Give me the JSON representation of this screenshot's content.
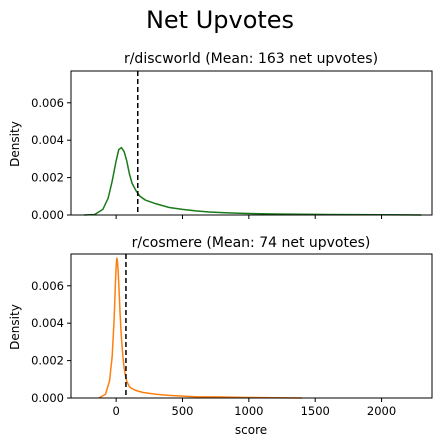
{
  "chart_data": {
    "type": "line",
    "title": "Net Upvotes",
    "panels": [
      {
        "title": "r/discworld (Mean: 163 net upvotes)",
        "ylabel": "Density",
        "xlabel": "",
        "xlim": [
          -340,
          2380
        ],
        "ylim": [
          0,
          0.0077
        ],
        "yticks": [
          "0.000",
          "0.002",
          "0.004",
          "0.006"
        ],
        "mean": 163,
        "color": "#1a7a1a",
        "series": [
          {
            "x": [
              -240,
              -160,
              -100,
              -60,
              -30,
              0,
              20,
              40,
              60,
              80,
              100,
              120,
              150,
              180,
              220,
              260,
              300,
              350,
              400,
              500,
              600,
              700,
              800,
              900,
              1000,
              1200,
              1400,
              1600,
              1800,
              2000,
              2200,
              2300
            ],
            "y": [
              0.0,
              3e-05,
              0.0003,
              0.0009,
              0.0018,
              0.0029,
              0.0035,
              0.0036,
              0.0034,
              0.0029,
              0.0022,
              0.0017,
              0.0013,
              0.001,
              0.0008,
              0.0007,
              0.0006,
              0.0005,
              0.0004,
              0.0003,
              0.00022,
              0.00016,
              0.00013,
              0.0001,
              8e-05,
              5e-05,
              4e-05,
              3e-05,
              2e-05,
              1e-05,
              5e-06,
              0.0
            ]
          }
        ]
      },
      {
        "title": "r/cosmere (Mean: 74 net upvotes)",
        "ylabel": "Density",
        "xlabel": "score",
        "xlim": [
          -340,
          2380
        ],
        "ylim": [
          0,
          0.0077
        ],
        "xticks": [
          "0",
          "500",
          "1000",
          "1500",
          "2000"
        ],
        "yticks": [
          "0.000",
          "0.002",
          "0.004",
          "0.006"
        ],
        "mean": 74,
        "color": "#ff7f0e",
        "series": [
          {
            "x": [
              -130,
              -80,
              -50,
              -30,
              -15,
              -5,
              0,
              5,
              10,
              15,
              20,
              30,
              40,
              50,
              60,
              70,
              80,
              100,
              120,
              150,
              200,
              250,
              300,
              400,
              500,
              600,
              800,
              1000,
              1200,
              1400
            ],
            "y": [
              0.0,
              0.0002,
              0.0009,
              0.0022,
              0.0042,
              0.0062,
              0.007,
              0.0075,
              0.0073,
              0.0068,
              0.0061,
              0.0045,
              0.0032,
              0.0023,
              0.0016,
              0.0012,
              0.0009,
              0.0006,
              0.0005,
              0.0004,
              0.0003,
              0.00025,
              0.0002,
              0.00014,
              0.0001,
              7e-05,
              5e-05,
              3e-05,
              1e-05,
              0.0
            ]
          }
        ]
      }
    ]
  }
}
